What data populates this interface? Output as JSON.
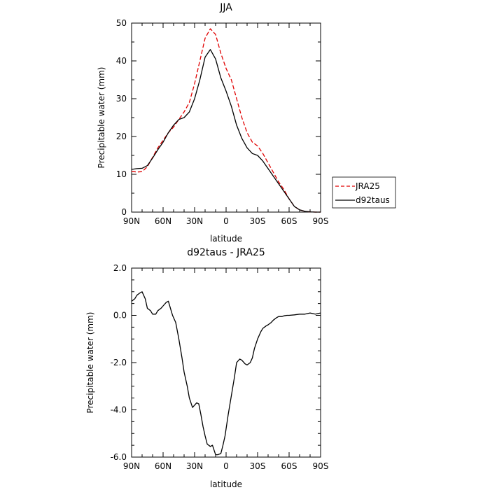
{
  "chart_data": [
    {
      "type": "line",
      "title": "JJA",
      "xlabel": "latitude",
      "ylabel": "Precipitable water (mm)",
      "xlim": [
        90,
        -90
      ],
      "ylim": [
        0,
        50
      ],
      "x_ticks": [
        90,
        60,
        30,
        0,
        -30,
        -60,
        -90
      ],
      "x_tick_labels": [
        "90N",
        "60N",
        "30N",
        "0",
        "30S",
        "60S",
        "90S"
      ],
      "y_ticks": [
        0,
        10,
        20,
        30,
        40,
        50
      ],
      "y_tick_labels": [
        "0",
        "10",
        "20",
        "30",
        "40",
        "50"
      ],
      "legend_position": "right",
      "series": [
        {
          "name": "JRA25",
          "color": "#e00000",
          "style": "dashed",
          "x": [
            90,
            85,
            80,
            75,
            70,
            65,
            60,
            55,
            50,
            45,
            40,
            35,
            30,
            25,
            20,
            15,
            10,
            5,
            0,
            -5,
            -10,
            -15,
            -20,
            -25,
            -30,
            -35,
            -40,
            -45,
            -50,
            -55,
            -60,
            -65,
            -70,
            -75,
            -80,
            -85,
            -90
          ],
          "values": [
            10.8,
            10.6,
            10.7,
            12.0,
            14.5,
            17.0,
            19.0,
            21.0,
            22.5,
            24.5,
            26.5,
            29.0,
            34.0,
            40.0,
            46.0,
            48.5,
            47.0,
            42.0,
            38.0,
            35.0,
            30.0,
            25.0,
            21.0,
            18.5,
            17.5,
            15.5,
            13.0,
            10.5,
            8.0,
            6.0,
            3.5,
            1.5,
            0.6,
            0.2,
            0.05,
            0.0,
            0.0
          ]
        },
        {
          "name": "d92taus",
          "color": "#000000",
          "style": "solid",
          "x": [
            90,
            85,
            80,
            75,
            70,
            65,
            60,
            55,
            50,
            45,
            40,
            35,
            30,
            25,
            20,
            15,
            10,
            5,
            0,
            -5,
            -10,
            -15,
            -20,
            -25,
            -30,
            -35,
            -40,
            -45,
            -50,
            -55,
            -60,
            -65,
            -70,
            -75,
            -80,
            -85,
            -90
          ],
          "values": [
            11.3,
            11.5,
            11.6,
            12.3,
            14.3,
            16.5,
            18.5,
            21.0,
            23.0,
            24.5,
            25.0,
            26.5,
            30.0,
            35.0,
            41.0,
            43.0,
            40.5,
            35.5,
            32.0,
            28.0,
            23.0,
            19.5,
            17.0,
            15.5,
            15.0,
            13.5,
            11.5,
            9.5,
            7.5,
            5.5,
            3.5,
            1.5,
            0.6,
            0.2,
            0.05,
            0.0,
            0.0
          ]
        }
      ]
    },
    {
      "type": "line",
      "title": "d92taus - JRA25",
      "xlabel": "latitude",
      "ylabel": "Precipitable water (mm)",
      "xlim": [
        90,
        -90
      ],
      "ylim": [
        -6,
        2
      ],
      "x_ticks": [
        90,
        60,
        30,
        0,
        -30,
        -60,
        -90
      ],
      "x_tick_labels": [
        "90N",
        "60N",
        "30N",
        "0",
        "30S",
        "60S",
        "90S"
      ],
      "y_ticks": [
        2,
        0,
        -2,
        -4,
        -6
      ],
      "y_tick_labels": [
        "2.0",
        "0.0",
        "-2.0",
        "-4.0",
        "-6.0"
      ],
      "series": [
        {
          "color": "#000000",
          "style": "solid",
          "x": [
            90,
            87,
            85,
            82,
            80,
            77,
            75,
            72,
            70,
            67,
            65,
            62,
            60,
            57,
            55,
            53,
            51,
            48,
            45,
            42,
            40,
            37,
            35,
            32,
            30,
            28,
            26,
            24,
            22,
            20,
            18,
            15,
            13,
            10,
            8,
            5,
            3,
            1,
            0,
            -2,
            -5,
            -8,
            -10,
            -13,
            -15,
            -18,
            -20,
            -23,
            -25,
            -27,
            -30,
            -33,
            -35,
            -38,
            -40,
            -43,
            -45,
            -48,
            -50,
            -53,
            -55,
            -58,
            -60,
            -65,
            -70,
            -75,
            -80,
            -85,
            -90
          ],
          "values": [
            0.6,
            0.7,
            0.85,
            0.95,
            1.0,
            0.7,
            0.3,
            0.2,
            0.05,
            0.05,
            0.2,
            0.3,
            0.4,
            0.55,
            0.6,
            0.3,
            0.0,
            -0.3,
            -1.0,
            -1.8,
            -2.4,
            -3.0,
            -3.5,
            -3.9,
            -3.8,
            -3.7,
            -3.75,
            -4.2,
            -4.7,
            -5.1,
            -5.45,
            -5.55,
            -5.5,
            -5.9,
            -5.9,
            -5.85,
            -5.5,
            -5.1,
            -4.8,
            -4.2,
            -3.4,
            -2.6,
            -2.0,
            -1.85,
            -1.9,
            -2.05,
            -2.1,
            -2.0,
            -1.8,
            -1.4,
            -1.0,
            -0.7,
            -0.55,
            -0.45,
            -0.4,
            -0.3,
            -0.2,
            -0.1,
            -0.05,
            -0.05,
            -0.02,
            0.0,
            0.0,
            0.02,
            0.05,
            0.05,
            0.1,
            0.05,
            0.1
          ]
        }
      ]
    }
  ]
}
